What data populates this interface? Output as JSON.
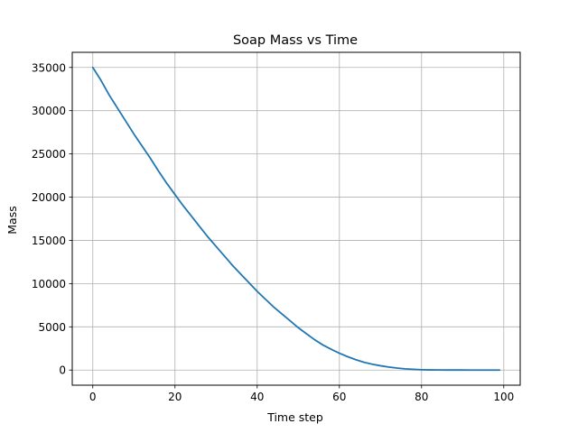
{
  "chart_data": {
    "type": "line",
    "title": "Soap Mass vs Time",
    "xlabel": "Time step",
    "ylabel": "Mass",
    "xlim": [
      -5,
      104
    ],
    "ylim": [
      -1750,
      36750
    ],
    "xticks": [
      0,
      20,
      40,
      60,
      80,
      100
    ],
    "yticks": [
      0,
      5000,
      10000,
      15000,
      20000,
      25000,
      30000,
      35000
    ],
    "grid": true,
    "line_color": "#1f77b4",
    "series": [
      {
        "x": [
          0,
          2,
          4,
          6,
          8,
          10,
          12,
          14,
          16,
          18,
          20,
          22,
          24,
          26,
          28,
          30,
          32,
          34,
          36,
          38,
          40,
          42,
          44,
          46,
          48,
          50,
          52,
          54,
          56,
          58,
          60,
          62,
          64,
          66,
          68,
          70,
          72,
          74,
          76,
          78,
          80,
          82,
          84,
          86,
          88,
          90,
          92,
          94,
          96,
          99
        ],
        "values": [
          35000,
          33500,
          31800,
          30300,
          28800,
          27300,
          25900,
          24500,
          23000,
          21600,
          20300,
          19000,
          17800,
          16600,
          15400,
          14300,
          13200,
          12100,
          11100,
          10100,
          9100,
          8200,
          7300,
          6500,
          5700,
          4900,
          4200,
          3500,
          2900,
          2400,
          1950,
          1550,
          1200,
          900,
          680,
          500,
          350,
          230,
          140,
          80,
          40,
          20,
          10,
          5,
          3,
          2,
          1,
          0,
          0,
          0
        ]
      }
    ]
  }
}
